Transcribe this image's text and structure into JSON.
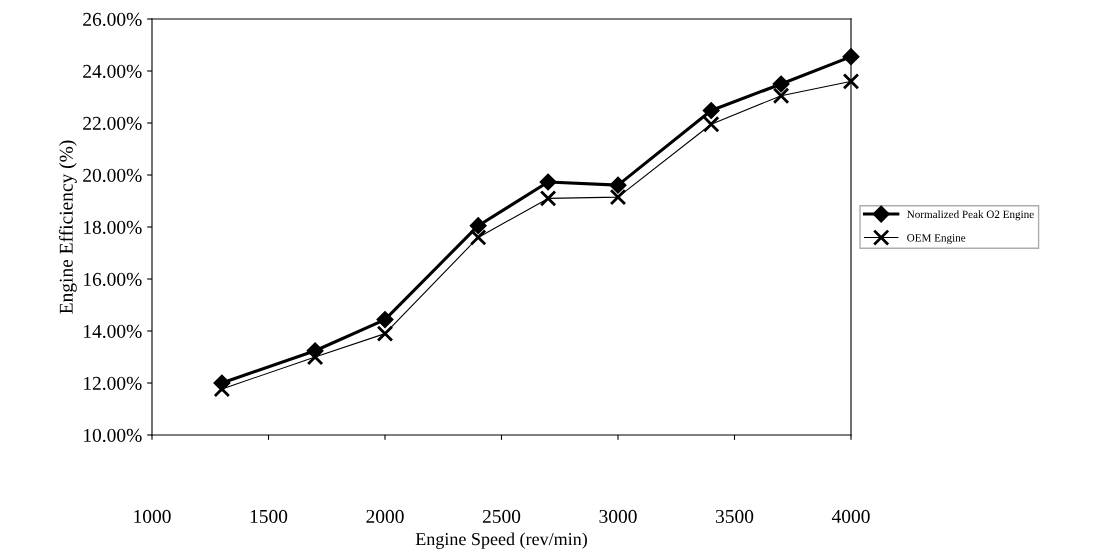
{
  "chart_data": {
    "type": "line",
    "xlabel": "Engine Speed (rev/min)",
    "ylabel": "Engine Efficiency (%)",
    "x": [
      1300,
      1700,
      2000,
      2400,
      2700,
      3000,
      3400,
      3700,
      4000
    ],
    "series": [
      {
        "name": "Normalized Peak O2 Engine",
        "color": "#000000",
        "marker": "diamond",
        "values": [
          12.0,
          13.24,
          14.44,
          18.05,
          19.73,
          19.61,
          22.48,
          23.5,
          24.55
        ]
      },
      {
        "name": "OEM Engine",
        "color": "#000000",
        "marker": "cross",
        "values": [
          11.77,
          13.0,
          13.9,
          17.6,
          19.1,
          19.15,
          21.95,
          23.05,
          23.6
        ]
      }
    ],
    "xlim": [
      1000,
      4000
    ],
    "xticks": [
      1000,
      1500,
      2000,
      2500,
      3000,
      3500,
      4000
    ],
    "ylim": [
      10,
      26
    ],
    "yticks": [
      {
        "value": 10,
        "label": "10.00%"
      },
      {
        "value": 12,
        "label": "12.00%"
      },
      {
        "value": 14,
        "label": "14.00%"
      },
      {
        "value": 16,
        "label": "16.00%"
      },
      {
        "value": 18,
        "label": "18.00%"
      },
      {
        "value": 20,
        "label": "20.00%"
      },
      {
        "value": 22,
        "label": "22.00%"
      },
      {
        "value": 24,
        "label": "24.00%"
      },
      {
        "value": 26,
        "label": "26.00%"
      }
    ],
    "grid": false,
    "legend": "right",
    "line_style": "solid"
  }
}
